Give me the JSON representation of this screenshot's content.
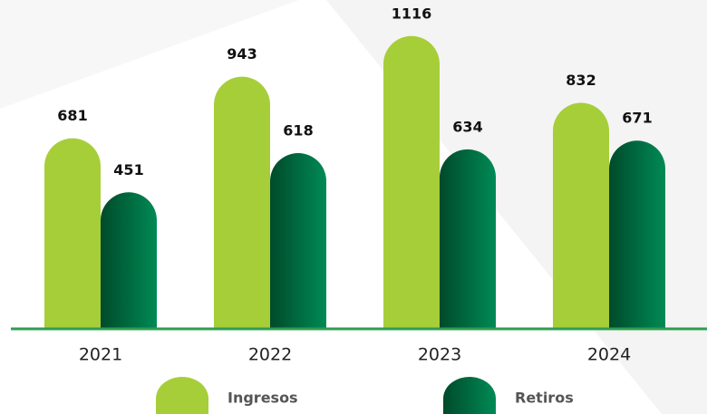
{
  "chart_data": {
    "type": "bar",
    "categories": [
      "2021",
      "2022",
      "2023",
      "2024"
    ],
    "series": [
      {
        "name": "Ingresos",
        "color": "#a6ce39",
        "values": [
          681,
          943,
          1116,
          832
        ]
      },
      {
        "name": "Retiros",
        "color": "#008a55",
        "values": [
          451,
          618,
          634,
          671
        ]
      }
    ],
    "ylim": [
      -130,
      1200
    ],
    "legend": "bottom"
  }
}
